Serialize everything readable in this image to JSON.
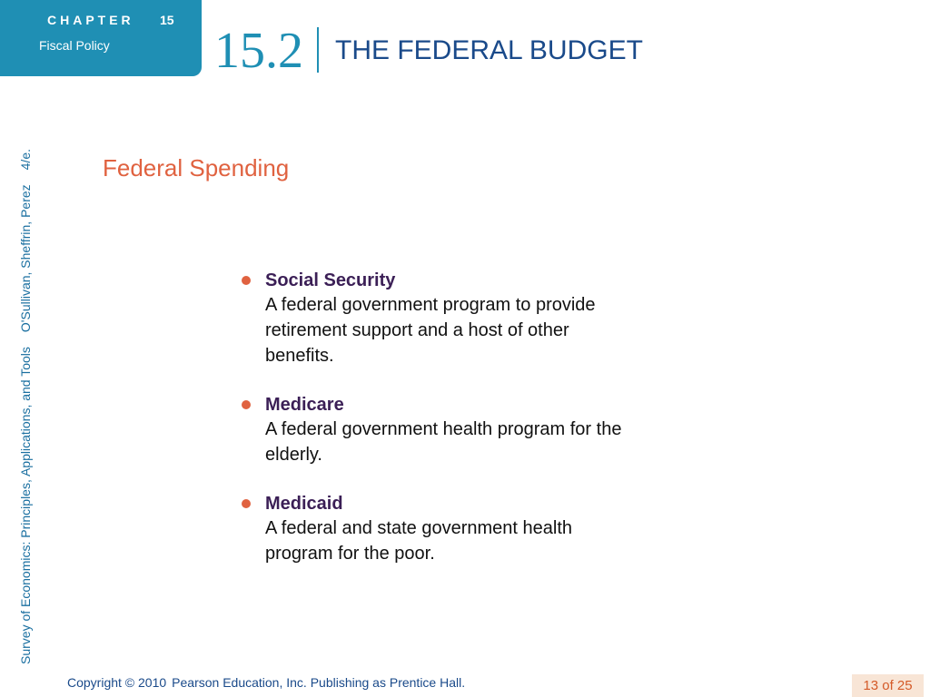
{
  "header": {
    "chapter_word": "CHAPTER",
    "chapter_number": "15",
    "chapter_subtitle": "Fiscal Policy",
    "section_number": "15.2",
    "section_title": "THE FEDERAL BUDGET"
  },
  "sidebar": {
    "book_title": "Survey of Economics: Principles, Applications, and Tools",
    "authors": "O'Sullivan, Sheffrin, Perez",
    "edition": "4/e."
  },
  "slide": {
    "subtitle": "Federal Spending",
    "bullets": [
      {
        "term": "Social Security",
        "definition": "A federal government program to provide retirement support and a host of other benefits."
      },
      {
        "term": "Medicare",
        "definition": "A federal government health program for the elderly."
      },
      {
        "term": "Medicaid",
        "definition": "A federal and state government health program for the poor."
      }
    ]
  },
  "footer": {
    "copyright": "Copyright © 2010",
    "publisher": "Pearson Education, Inc. Publishing as Prentice Hall.",
    "page": "13 of 25"
  },
  "colors": {
    "accent_blue": "#1f8fb4",
    "title_blue": "#1a4a8a",
    "accent_orange": "#e06240",
    "term_purple": "#3b1f56"
  }
}
